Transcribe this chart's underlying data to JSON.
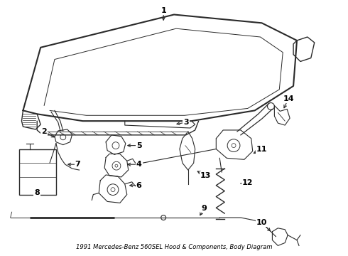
{
  "title": "1991 Mercedes-Benz 560SEL Hood & Components, Body Diagram",
  "background_color": "#ffffff",
  "line_color": "#2a2a2a",
  "label_color": "#000000",
  "fig_width": 4.9,
  "fig_height": 3.6,
  "dpi": 100
}
